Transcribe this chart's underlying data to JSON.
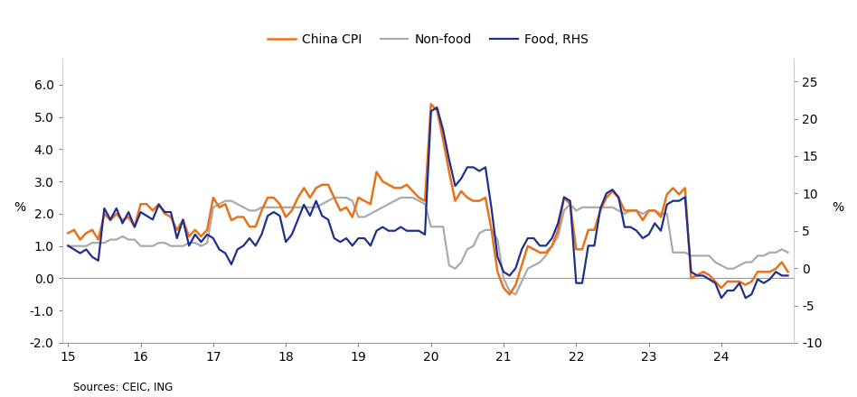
{
  "source_text": "Sources: CEIC, ING",
  "left_ylabel": "%",
  "right_ylabel": "%",
  "left_ylim": [
    -2.0,
    6.8
  ],
  "right_ylim": [
    -10.0,
    28.0
  ],
  "left_yticks": [
    -2.0,
    -1.0,
    0.0,
    1.0,
    2.0,
    3.0,
    4.0,
    5.0,
    6.0
  ],
  "right_yticks": [
    -10,
    -5,
    0,
    5,
    10,
    15,
    20,
    25
  ],
  "xtick_positions": [
    0,
    12,
    24,
    36,
    48,
    60,
    72,
    84,
    96,
    108
  ],
  "xtick_labels": [
    "15",
    "16",
    "17",
    "18",
    "19",
    "20",
    "21",
    "22",
    "23",
    "24"
  ],
  "legend_labels": [
    "China CPI",
    "Non-food",
    "Food, RHS"
  ],
  "china_cpi_color": "#E8721C",
  "nonfood_color": "#AAAAAA",
  "food_color": "#1F2F8C",
  "china_cpi": [
    1.4,
    1.5,
    1.2,
    1.4,
    1.5,
    1.2,
    2.0,
    1.8,
    2.0,
    1.8,
    1.9,
    1.6,
    2.3,
    2.3,
    2.1,
    2.3,
    2.0,
    1.9,
    1.5,
    1.8,
    1.3,
    1.5,
    1.3,
    1.5,
    2.5,
    2.2,
    2.3,
    1.8,
    1.9,
    1.9,
    1.6,
    1.6,
    2.1,
    2.5,
    2.5,
    2.3,
    1.9,
    2.1,
    2.5,
    2.8,
    2.5,
    2.8,
    2.9,
    2.9,
    2.5,
    2.1,
    2.2,
    1.9,
    2.5,
    2.4,
    2.3,
    3.3,
    3.0,
    2.9,
    2.8,
    2.8,
    2.9,
    2.7,
    2.5,
    2.4,
    5.4,
    5.2,
    4.3,
    3.3,
    2.4,
    2.7,
    2.5,
    2.4,
    2.4,
    2.5,
    1.5,
    0.2,
    -0.3,
    -0.5,
    -0.2,
    0.4,
    1.0,
    0.9,
    0.8,
    0.8,
    1.0,
    1.5,
    2.5,
    2.3,
    0.9,
    0.9,
    1.5,
    1.5,
    2.1,
    2.5,
    2.7,
    2.5,
    2.1,
    2.1,
    2.1,
    1.8,
    2.1,
    2.1,
    1.9,
    2.6,
    2.8,
    2.6,
    2.8,
    0.0,
    0.1,
    0.2,
    0.1,
    -0.1,
    -0.3,
    -0.1,
    -0.1,
    -0.1,
    -0.2,
    -0.1,
    0.2,
    0.2,
    0.2,
    0.3,
    0.5,
    0.2
  ],
  "nonfood": [
    1.0,
    1.0,
    1.0,
    1.0,
    1.1,
    1.1,
    1.1,
    1.2,
    1.2,
    1.3,
    1.2,
    1.2,
    1.0,
    1.0,
    1.0,
    1.1,
    1.1,
    1.0,
    1.0,
    1.0,
    1.1,
    1.1,
    1.0,
    1.1,
    2.2,
    2.3,
    2.4,
    2.4,
    2.3,
    2.2,
    2.1,
    2.1,
    2.2,
    2.2,
    2.2,
    2.2,
    2.2,
    2.2,
    2.2,
    2.2,
    2.2,
    2.2,
    2.3,
    2.4,
    2.5,
    2.5,
    2.5,
    2.4,
    1.9,
    1.9,
    2.0,
    2.1,
    2.2,
    2.3,
    2.4,
    2.5,
    2.5,
    2.5,
    2.4,
    2.3,
    1.6,
    1.6,
    1.6,
    0.4,
    0.3,
    0.5,
    0.9,
    1.0,
    1.4,
    1.5,
    1.5,
    1.2,
    0.0,
    -0.4,
    -0.5,
    -0.1,
    0.3,
    0.4,
    0.5,
    0.7,
    1.0,
    1.3,
    2.1,
    2.3,
    2.1,
    2.2,
    2.2,
    2.2,
    2.2,
    2.2,
    2.2,
    2.1,
    2.0,
    2.1,
    2.1,
    2.0,
    2.1,
    2.1,
    2.0,
    2.0,
    0.8,
    0.8,
    0.8,
    0.7,
    0.7,
    0.7,
    0.7,
    0.5,
    0.4,
    0.3,
    0.3,
    0.4,
    0.5,
    0.5,
    0.7,
    0.7,
    0.8,
    0.8,
    0.9,
    0.8
  ],
  "food_rhs": [
    3.0,
    2.5,
    2.0,
    2.5,
    1.5,
    1.0,
    8.0,
    6.5,
    8.0,
    6.0,
    7.5,
    5.5,
    7.5,
    7.0,
    6.5,
    8.5,
    7.5,
    7.5,
    4.0,
    6.5,
    3.0,
    4.5,
    3.5,
    4.5,
    4.0,
    2.5,
    2.0,
    0.5,
    2.5,
    3.0,
    4.0,
    3.0,
    4.5,
    7.0,
    7.5,
    7.0,
    3.5,
    4.5,
    6.5,
    8.5,
    7.0,
    9.0,
    7.0,
    6.5,
    4.0,
    3.5,
    4.0,
    3.0,
    4.0,
    4.0,
    3.0,
    5.0,
    5.5,
    5.0,
    5.0,
    5.5,
    5.0,
    5.0,
    5.0,
    4.5,
    21.0,
    21.5,
    18.5,
    14.5,
    11.0,
    12.0,
    13.5,
    13.5,
    13.0,
    13.5,
    8.0,
    1.5,
    -0.5,
    -1.0,
    0.0,
    2.5,
    4.0,
    4.0,
    3.0,
    3.0,
    4.0,
    6.0,
    9.5,
    9.0,
    -2.0,
    -2.0,
    3.0,
    3.0,
    8.0,
    10.0,
    10.5,
    9.5,
    5.5,
    5.5,
    5.0,
    4.0,
    4.5,
    6.0,
    5.0,
    8.5,
    9.0,
    9.0,
    9.5,
    -0.5,
    -1.0,
    -1.0,
    -1.5,
    -2.0,
    -4.0,
    -3.0,
    -3.0,
    -2.0,
    -4.0,
    -3.5,
    -1.5,
    -2.0,
    -1.5,
    -0.5,
    -1.0,
    -1.0
  ]
}
